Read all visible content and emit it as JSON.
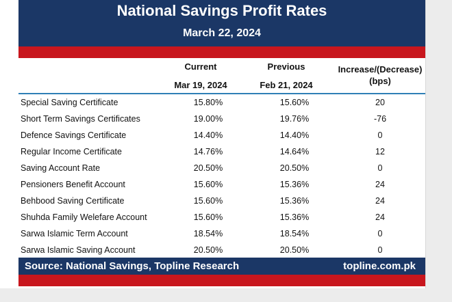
{
  "header": {
    "title": "National Savings Profit Rates",
    "date": "March 22, 2024"
  },
  "columns": {
    "current_label": "Current",
    "current_date": "Mar 19, 2024",
    "previous_label": "Previous",
    "previous_date": "Feb 21, 2024",
    "change_label": "Increase/(Decrease)",
    "change_unit": "(bps)"
  },
  "rows": [
    {
      "name": "Special Saving Certificate",
      "current": "15.80%",
      "previous": "15.60%",
      "change": "20"
    },
    {
      "name": "Short Term Savings Certificates",
      "current": "19.00%",
      "previous": "19.76%",
      "change": "-76"
    },
    {
      "name": "Defence Savings Certificate",
      "current": "14.40%",
      "previous": "14.40%",
      "change": "0"
    },
    {
      "name": "Regular Income Certificate",
      "current": "14.76%",
      "previous": "14.64%",
      "change": "12"
    },
    {
      "name": "Saving Account Rate",
      "current": "20.50%",
      "previous": "20.50%",
      "change": "0"
    },
    {
      "name": "Pensioners Benefit Account",
      "current": "15.60%",
      "previous": "15.36%",
      "change": "24"
    },
    {
      "name": "Behbood Saving Certificate",
      "current": "15.60%",
      "previous": "15.36%",
      "change": "24"
    },
    {
      "name": "Shuhda Family Welefare Account",
      "current": "15.60%",
      "previous": "15.36%",
      "change": "24"
    },
    {
      "name": "Sarwa Islamic Term Account",
      "current": "18.54%",
      "previous": "18.54%",
      "change": "0"
    },
    {
      "name": "Sarwa Islamic Saving Account",
      "current": "20.50%",
      "previous": "20.50%",
      "change": "0"
    }
  ],
  "footer": {
    "source": "Source: National Savings, Topline Research",
    "site": "topline.com.pk"
  },
  "colors": {
    "navy": "#1b3766",
    "red": "#c8161d",
    "rule": "#2e7fb6"
  }
}
